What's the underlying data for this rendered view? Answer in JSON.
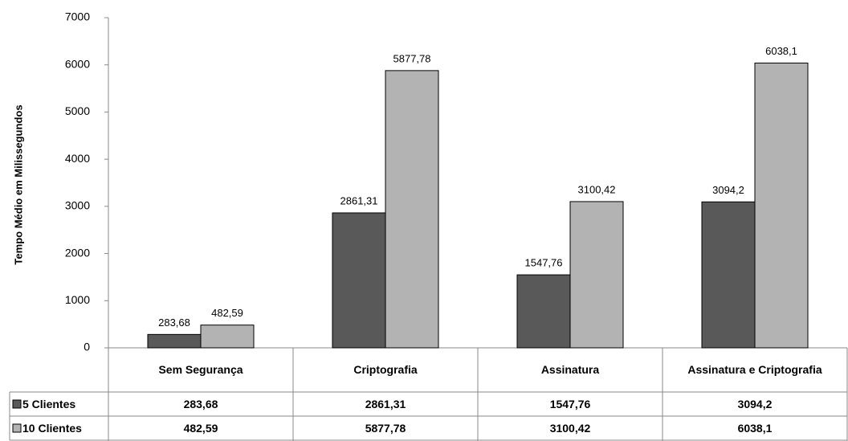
{
  "chart_data": {
    "type": "bar",
    "y_label": "Tempo Médio em Milissegundos",
    "categories": [
      "Sem Segurança",
      "Criptografia",
      "Assinatura",
      "Assinatura e Criptografia"
    ],
    "series": [
      {
        "name": "5 Clientes",
        "color": "#595959",
        "values": [
          283.68,
          2861.31,
          1547.76,
          3094.2
        ],
        "value_labels": [
          "283,68",
          "2861,31",
          "1547,76",
          "3094,2"
        ]
      },
      {
        "name": "10 Clientes",
        "color": "#b3b3b3",
        "values": [
          482.59,
          5877.78,
          3100.42,
          6038.1
        ],
        "value_labels": [
          "482,59",
          "5877,78",
          "3100,42",
          "6038,1"
        ]
      }
    ],
    "ylim": [
      0,
      7000
    ],
    "yticks": [
      0,
      1000,
      2000,
      3000,
      4000,
      5000,
      6000,
      7000
    ],
    "grid": false
  }
}
